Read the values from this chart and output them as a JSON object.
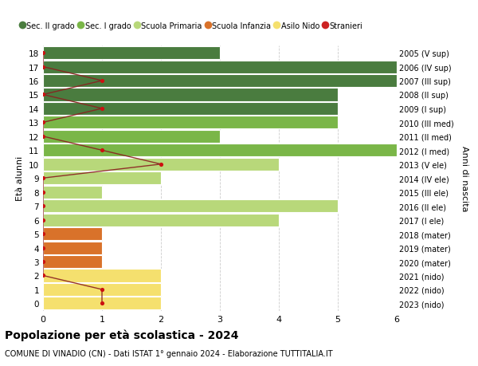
{
  "ages": [
    18,
    17,
    16,
    15,
    14,
    13,
    12,
    11,
    10,
    9,
    8,
    7,
    6,
    5,
    4,
    3,
    2,
    1,
    0
  ],
  "right_labels": [
    "2005 (V sup)",
    "2006 (IV sup)",
    "2007 (III sup)",
    "2008 (II sup)",
    "2009 (I sup)",
    "2010 (III med)",
    "2011 (II med)",
    "2012 (I med)",
    "2013 (V ele)",
    "2014 (IV ele)",
    "2015 (III ele)",
    "2016 (II ele)",
    "2017 (I ele)",
    "2018 (mater)",
    "2019 (mater)",
    "2020 (mater)",
    "2021 (nido)",
    "2022 (nido)",
    "2023 (nido)"
  ],
  "bar_values": [
    3,
    6,
    6,
    5,
    5,
    5,
    3,
    6,
    4,
    2,
    1,
    5,
    4,
    1,
    1,
    1,
    2,
    2,
    2
  ],
  "bar_colors": [
    "#4a7c3f",
    "#4a7c3f",
    "#4a7c3f",
    "#4a7c3f",
    "#4a7c3f",
    "#7ab648",
    "#7ab648",
    "#7ab648",
    "#b8d87a",
    "#b8d87a",
    "#b8d87a",
    "#b8d87a",
    "#b8d87a",
    "#d9722a",
    "#d9722a",
    "#d9722a",
    "#f5e06e",
    "#f5e06e",
    "#f5e06e"
  ],
  "stranieri_x": [
    0,
    0,
    1,
    0,
    1,
    0,
    0,
    1,
    2,
    0,
    0,
    0,
    0,
    0,
    0,
    0,
    0,
    1,
    1
  ],
  "legend_labels": [
    "Sec. II grado",
    "Sec. I grado",
    "Scuola Primaria",
    "Scuola Infanzia",
    "Asilo Nido",
    "Stranieri"
  ],
  "legend_colors": [
    "#4a7c3f",
    "#7ab648",
    "#b8d87a",
    "#d9722a",
    "#f5e06e",
    "#cc2222"
  ],
  "title": "Popolazione per età scolastica - 2024",
  "subtitle": "COMUNE DI VINADIO (CN) - Dati ISTAT 1° gennaio 2024 - Elaborazione TUTTITALIA.IT",
  "ylabel_left": "Età alunni",
  "ylabel_right": "Anni di nascita",
  "xlim": [
    0,
    6
  ],
  "ylim_min": -0.55,
  "ylim_max": 18.55,
  "bar_height": 0.92,
  "grid_color": "#cccccc",
  "bg_color": "#ffffff",
  "bar_edge_color": "#ffffff",
  "stranieri_line_color": "#8b2020",
  "stranieri_dot_color": "#cc1111"
}
